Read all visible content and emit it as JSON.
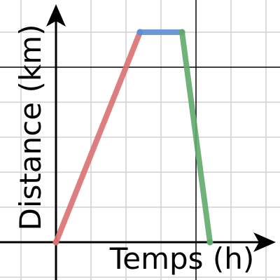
{
  "chart_data": {
    "type": "line",
    "title": "",
    "xlabel": "Temps (h)",
    "ylabel": "Distance (km)",
    "xlim": [
      -2.6,
      6.4
    ],
    "ylim": [
      -1.1,
      7.0
    ],
    "grid": true,
    "series": [
      {
        "segment": "rise",
        "color": "#dc7070",
        "points": [
          [
            0,
            0
          ],
          [
            2.4,
            6
          ]
        ]
      },
      {
        "segment": "stop",
        "color": "#5b8fd6",
        "points": [
          [
            2.4,
            6
          ],
          [
            3.6,
            6
          ]
        ]
      },
      {
        "segment": "return",
        "color": "#5faa6b",
        "points": [
          [
            3.6,
            6
          ],
          [
            4.4,
            0
          ]
        ]
      }
    ]
  },
  "colors": {
    "grid_minor": "#d0d0d0",
    "grid_major": "#000000",
    "axis": "#000000"
  }
}
